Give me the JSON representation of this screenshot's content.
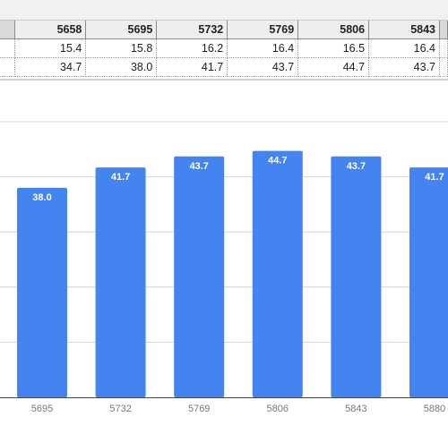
{
  "table": {
    "header": [
      "5658",
      "5695",
      "5732",
      "5769",
      "5806",
      "5843"
    ],
    "rows": [
      [
        "15.4",
        "15.8",
        "16.2",
        "16.4",
        "16.5",
        "16.4"
      ],
      [
        "34.7",
        "38.0",
        "41.7",
        "43.7",
        "44.7",
        "43.7"
      ]
    ]
  },
  "chart_data": {
    "type": "bar",
    "categories": [
      "5695",
      "5732",
      "5769",
      "5806",
      "5843",
      "5880"
    ],
    "values": [
      38.0,
      41.7,
      43.7,
      44.7,
      43.7,
      41.7
    ],
    "labels": [
      "38.0",
      "41.7",
      "43.7",
      "44.7",
      "43.7",
      "41.7"
    ],
    "bar_color": "#4384f0",
    "gridlines": [
      10,
      20,
      30,
      40,
      50
    ],
    "ylim": [
      0,
      55
    ],
    "grid": true,
    "xlabel": "",
    "ylabel": "",
    "title": ""
  },
  "colors": {
    "bar": "#4384f0",
    "grid": "#d4d4d4",
    "axis": "#444444",
    "tick_text": "#777777"
  }
}
